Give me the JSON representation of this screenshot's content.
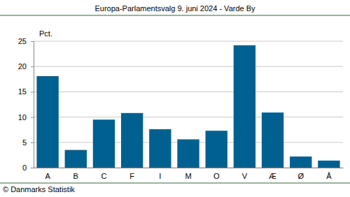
{
  "chart_data": {
    "type": "bar",
    "title": "Europa-Parlamentsvalg 9. juni 2024 - Varde By",
    "ylabel": "Pct.",
    "source": "© Danmarks Statistik",
    "categories": [
      "A",
      "B",
      "C",
      "F",
      "I",
      "M",
      "O",
      "V",
      "Æ",
      "Ø",
      "Å"
    ],
    "values": [
      18.1,
      3.5,
      9.5,
      10.8,
      7.6,
      5.6,
      7.3,
      24.2,
      10.9,
      2.2,
      1.4
    ],
    "color": "#006090",
    "ylim": [
      0,
      25
    ],
    "yticks": [
      0,
      5,
      10,
      15,
      20,
      25
    ],
    "grid": true
  }
}
